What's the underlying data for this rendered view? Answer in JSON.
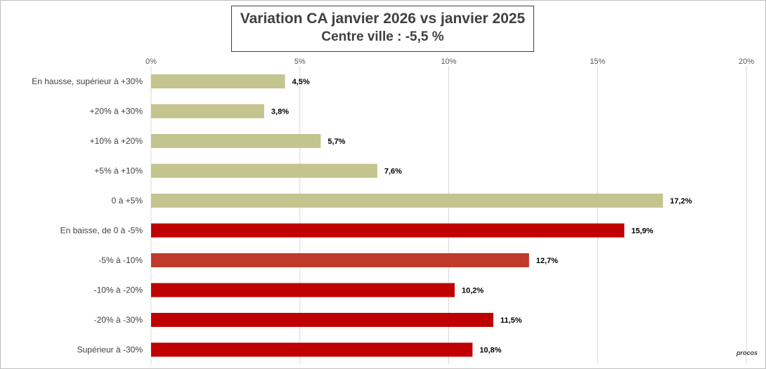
{
  "title": {
    "line1": "Variation CA janvier 2026 vs janvier 2025",
    "line2": "Centre ville  : -5,5 %"
  },
  "watermark": "procos",
  "chart_data": {
    "type": "bar",
    "orientation": "horizontal",
    "xlim": [
      0,
      20
    ],
    "x_ticks": [
      0,
      5,
      10,
      15,
      20
    ],
    "x_tick_labels": [
      "0%",
      "5%",
      "10%",
      "15%",
      "20%"
    ],
    "x_axis_position": "top",
    "grid": true,
    "categories": [
      "En hausse, supérieur à +30%",
      "+20% à +30%",
      "+10% à +20%",
      "+5% à +10%",
      "0 à +5%",
      "En baisse, de 0 à -5%",
      "-5% à -10%",
      "-10% à -20%",
      "-20% à -30%",
      "Supérieur à -30%"
    ],
    "values": [
      4.5,
      3.8,
      5.7,
      7.6,
      17.2,
      15.9,
      12.7,
      10.2,
      11.5,
      10.8
    ],
    "value_labels": [
      "4,5%",
      "3,8%",
      "5,7%",
      "7,6%",
      "17,2%",
      "15,9%",
      "12,7%",
      "10,2%",
      "11,5%",
      "10,8%"
    ],
    "colors": [
      "#c4c48e",
      "#c4c48e",
      "#c4c48e",
      "#c4c48e",
      "#c4c48e",
      "#c00000",
      "#c0392b",
      "#c00000",
      "#c00000",
      "#c00000"
    ]
  }
}
